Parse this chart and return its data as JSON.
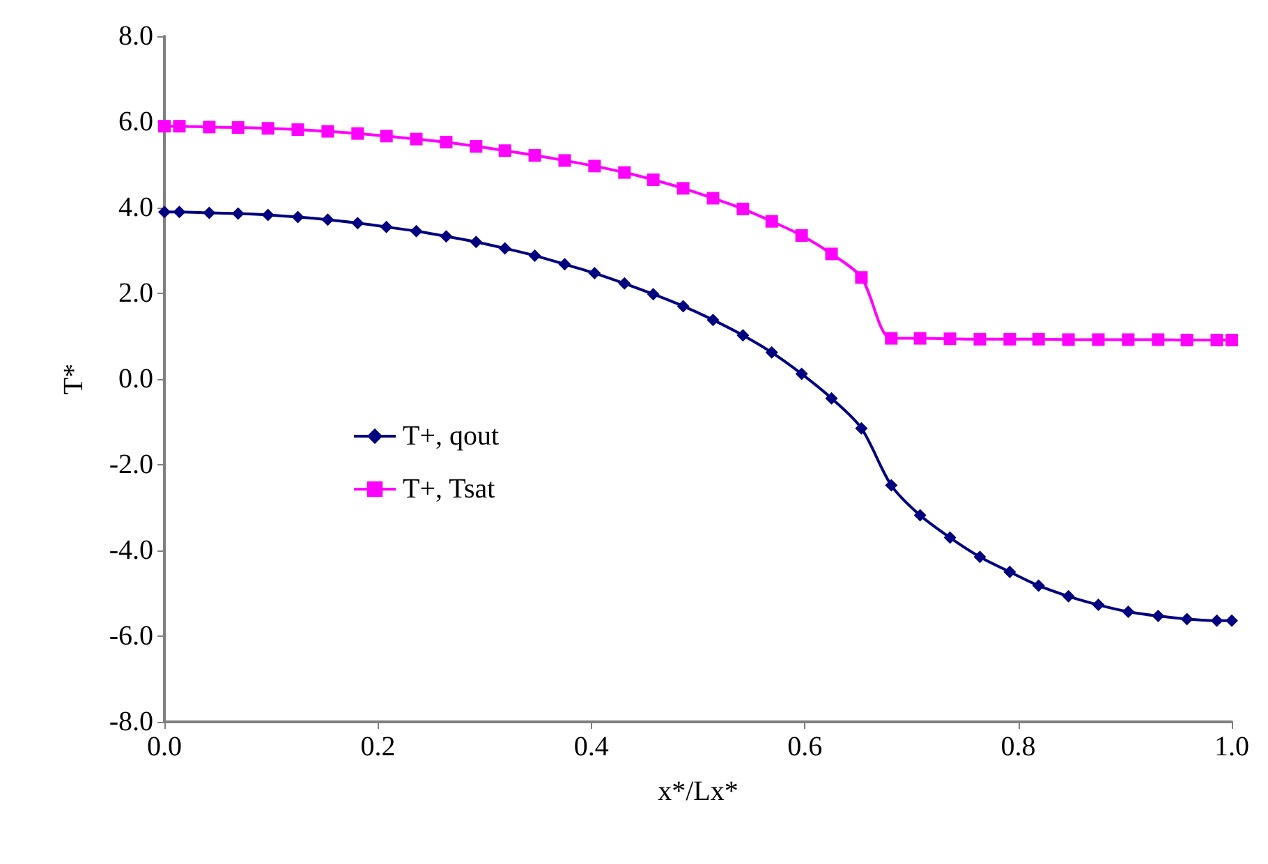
{
  "chart_data": {
    "type": "line",
    "xlabel": "x*/Lx*",
    "ylabel": "T*",
    "x": [
      0,
      0.014,
      0.042,
      0.069,
      0.097,
      0.125,
      0.153,
      0.181,
      0.208,
      0.236,
      0.264,
      0.292,
      0.319,
      0.347,
      0.375,
      0.403,
      0.431,
      0.458,
      0.486,
      0.514,
      0.542,
      0.569,
      0.597,
      0.625,
      0.653,
      0.681,
      0.708,
      0.736,
      0.764,
      0.792,
      0.819,
      0.847,
      0.875,
      0.903,
      0.931,
      0.958,
      0.986,
      1.0
    ],
    "series": [
      {
        "name": "T+, qout",
        "color": "#000080",
        "marker": "diamond",
        "values": [
          3.9,
          3.9,
          3.88,
          3.86,
          3.83,
          3.78,
          3.72,
          3.64,
          3.55,
          3.45,
          3.33,
          3.2,
          3.05,
          2.88,
          2.68,
          2.47,
          2.23,
          1.98,
          1.7,
          1.38,
          1.02,
          0.62,
          0.12,
          -0.45,
          -1.15,
          -2.48,
          -3.18,
          -3.7,
          -4.15,
          -4.5,
          -4.82,
          -5.07,
          -5.27,
          -5.43,
          -5.53,
          -5.6,
          -5.64,
          -5.64
        ]
      },
      {
        "name": "T+, Tsat",
        "color": "#ff00ff",
        "marker": "square",
        "values": [
          5.9,
          5.9,
          5.88,
          5.87,
          5.85,
          5.82,
          5.78,
          5.73,
          5.67,
          5.6,
          5.53,
          5.43,
          5.33,
          5.22,
          5.1,
          4.97,
          4.82,
          4.65,
          4.45,
          4.22,
          3.97,
          3.68,
          3.35,
          2.92,
          2.37,
          0.95,
          0.95,
          0.94,
          0.93,
          0.93,
          0.93,
          0.92,
          0.92,
          0.92,
          0.92,
          0.91,
          0.91,
          0.91
        ]
      }
    ],
    "xlim": [
      0,
      1.0
    ],
    "xticks": [
      {
        "value": 0,
        "label": "0.0"
      },
      {
        "value": 0.2,
        "label": "0.2"
      },
      {
        "value": 0.4,
        "label": "0.4"
      },
      {
        "value": 0.6,
        "label": "0.6"
      },
      {
        "value": 0.8,
        "label": "0.8"
      },
      {
        "value": 1.0,
        "label": "1.0"
      }
    ],
    "ylim": [
      -8,
      8
    ],
    "yticks": [
      {
        "value": -8,
        "label": "-8.0"
      },
      {
        "value": -6,
        "label": "-6.0"
      },
      {
        "value": -4,
        "label": "-4.0"
      },
      {
        "value": -2,
        "label": "-2.0"
      },
      {
        "value": 0,
        "label": "0.0"
      },
      {
        "value": 2,
        "label": "2.0"
      },
      {
        "value": 4,
        "label": "4.0"
      },
      {
        "value": 6,
        "label": "6.0"
      },
      {
        "value": 8,
        "label": "8.0"
      }
    ],
    "grid": false,
    "legend": "left",
    "line_style": "solid"
  }
}
